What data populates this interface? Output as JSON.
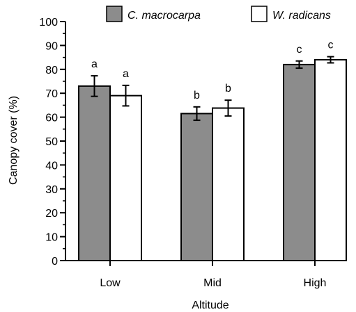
{
  "chart_data": {
    "type": "bar",
    "title": "",
    "xlabel": "Altitude",
    "ylabel": "Canopy cover (%)",
    "ylim": [
      0,
      100
    ],
    "yticks": [
      0,
      10,
      20,
      30,
      40,
      50,
      60,
      70,
      80,
      90,
      100
    ],
    "categories": [
      "Low",
      "Mid",
      "High"
    ],
    "legend": {
      "position": "top",
      "orientation": "horizontal"
    },
    "grid": false,
    "series": [
      {
        "name": "C. macrocarpa",
        "color": "#8c8c8c",
        "values": [
          73,
          61.5,
          82
        ],
        "errors": [
          4.3,
          2.8,
          1.5
        ],
        "letters": [
          "a",
          "b",
          "c"
        ]
      },
      {
        "name": "W. radicans",
        "color": "#ffffff",
        "values": [
          69,
          63.8,
          84
        ],
        "errors": [
          4.3,
          3.3,
          1.3
        ],
        "letters": [
          "a",
          "b",
          "c"
        ]
      }
    ]
  }
}
